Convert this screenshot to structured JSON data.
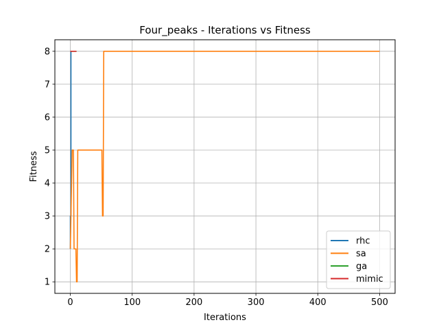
{
  "chart_data": {
    "type": "line",
    "title": "Four_peaks - Iterations vs Fitness",
    "xlabel": "Iterations",
    "ylabel": "Fitness",
    "xlim": [
      -25,
      525
    ],
    "ylim": [
      0.65,
      8.35
    ],
    "xticks": [
      0,
      100,
      200,
      300,
      400,
      500
    ],
    "yticks": [
      1,
      2,
      3,
      4,
      5,
      6,
      7,
      8
    ],
    "grid": true,
    "legend_position": "lower-right",
    "series": [
      {
        "name": "rhc",
        "color": "#1f77b4",
        "x": [
          0,
          0,
          1,
          1,
          1.5
        ],
        "y": [
          2,
          3,
          3,
          8,
          8
        ]
      },
      {
        "name": "sa",
        "color": "#ff7f0e",
        "x": [
          0,
          1,
          3,
          5,
          6,
          8,
          9,
          10,
          11,
          12,
          13,
          50,
          51,
          52,
          53,
          54,
          55,
          500
        ],
        "y": [
          2,
          3,
          5,
          5,
          2,
          2,
          2,
          1,
          1,
          5,
          5,
          5,
          5,
          3,
          3,
          8,
          8,
          8
        ]
      },
      {
        "name": "ga",
        "color": "#2ca02c",
        "x": [
          0,
          10
        ],
        "y": [
          8,
          8
        ]
      },
      {
        "name": "mimic",
        "color": "#d62728",
        "x": [
          0,
          10
        ],
        "y": [
          8,
          8
        ]
      }
    ]
  }
}
